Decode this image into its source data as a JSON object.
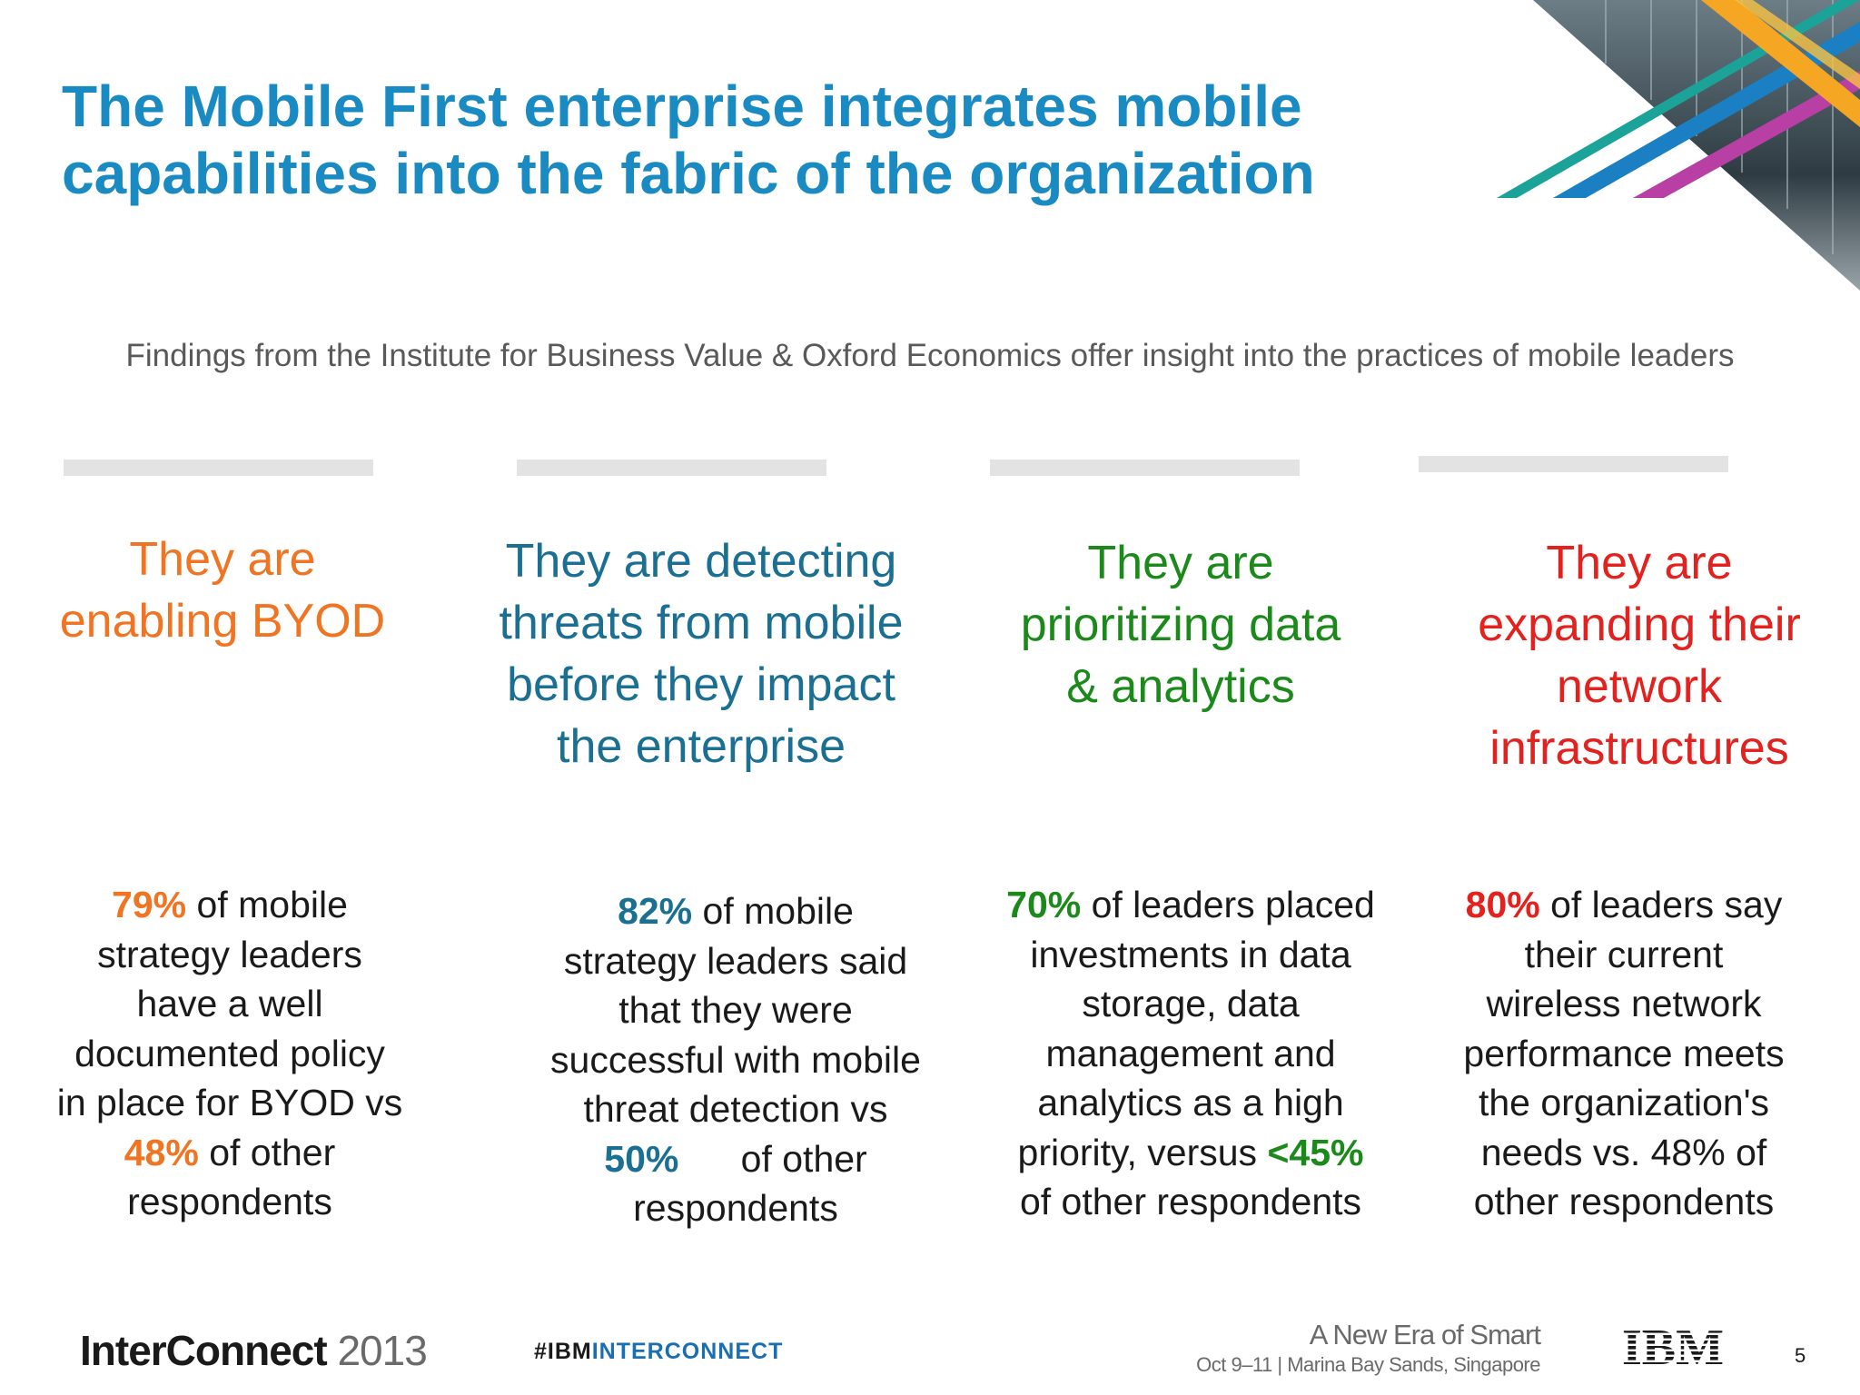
{
  "slide": {
    "title_lines": [
      "The Mobile First enterprise integrates mobile",
      "capabilities into the fabric of the organization"
    ],
    "subtitle": "Findings from the Institute for Business Value & Oxford Economics offer insight into the practices of mobile leaders",
    "colors": {
      "title": "#1a8ac2",
      "orange": "#f07422",
      "blue": "#1a6f93",
      "green": "#1b8a1b",
      "red": "#e3221f"
    },
    "columns": [
      {
        "heading_lines": [
          "They are",
          "enabling BYOD"
        ],
        "body": [
          {
            "pre": "",
            "hl": "79%",
            "post": " of mobile"
          },
          {
            "pre": "strategy leaders",
            "hl": "",
            "post": ""
          },
          {
            "pre": "have a well",
            "hl": "",
            "post": ""
          },
          {
            "pre": "documented policy",
            "hl": "",
            "post": ""
          },
          {
            "pre": "in place for BYOD vs",
            "hl": "",
            "post": ""
          },
          {
            "pre": "",
            "hl": "48%",
            "post": " of other"
          },
          {
            "pre": "respondents",
            "hl": "",
            "post": ""
          }
        ]
      },
      {
        "heading_lines": [
          "They are detecting",
          "threats from mobile",
          "before they impact",
          "the enterprise"
        ],
        "body": [
          {
            "pre": "",
            "hl": "82%",
            "post": " of mobile"
          },
          {
            "pre": "strategy leaders said",
            "hl": "",
            "post": ""
          },
          {
            "pre": "that they were",
            "hl": "",
            "post": ""
          },
          {
            "pre": "successful with mobile",
            "hl": "",
            "post": ""
          },
          {
            "pre": "threat detection vs",
            "hl": "",
            "post": ""
          },
          {
            "pre": "",
            "hl": "50%",
            "post": "      of other"
          },
          {
            "pre": "respondents",
            "hl": "",
            "post": ""
          }
        ]
      },
      {
        "heading_lines": [
          "They are",
          "prioritizing data",
          "& analytics"
        ],
        "body": [
          {
            "pre": "",
            "hl": "70%",
            "post": " of leaders placed"
          },
          {
            "pre": "investments in data",
            "hl": "",
            "post": ""
          },
          {
            "pre": "storage, data",
            "hl": "",
            "post": ""
          },
          {
            "pre": "management and",
            "hl": "",
            "post": ""
          },
          {
            "pre": "analytics as a high",
            "hl": "",
            "post": ""
          },
          {
            "pre": "priority, versus ",
            "hl": "<45%",
            "post": ""
          },
          {
            "pre": "of other respondents",
            "hl": "",
            "post": ""
          }
        ]
      },
      {
        "heading_lines": [
          "They are",
          "expanding their",
          "network",
          "infrastructures"
        ],
        "body": [
          {
            "pre": "",
            "hl": "80%",
            "post": " of leaders say"
          },
          {
            "pre": "their current",
            "hl": "",
            "post": ""
          },
          {
            "pre": "wireless network",
            "hl": "",
            "post": ""
          },
          {
            "pre": "performance meets",
            "hl": "",
            "post": ""
          },
          {
            "pre": "the organization's",
            "hl": "",
            "post": ""
          },
          {
            "pre": "needs vs. 48% of",
            "hl": "",
            "post": ""
          },
          {
            "pre": "other respondents",
            "hl": "",
            "post": ""
          }
        ]
      }
    ]
  },
  "footer": {
    "logo_bold": "InterConnect",
    "logo_year": " 2013",
    "hashtag_prefix": "#IBM",
    "hashtag_rest": "INTERCONNECT",
    "tagline": "A New Era of Smart",
    "event": "Oct 9–11 | Marina Bay Sands, Singapore",
    "ibm_logo": "IBM",
    "page_number": "5"
  }
}
